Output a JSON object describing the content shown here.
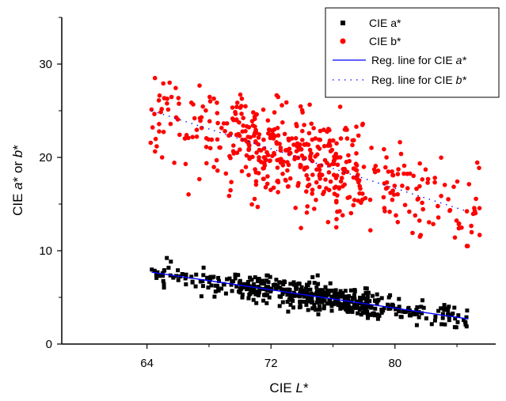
{
  "chart_data": {
    "type": "scatter",
    "xlabel": "CIE L*",
    "ylabel": "CIE a* or b*",
    "xlim": [
      58.5,
      86.5
    ],
    "ylim": [
      0,
      35
    ],
    "xticks": [
      "64",
      "72",
      "80"
    ],
    "yticks": [
      "0",
      "10",
      "20",
      "30"
    ],
    "grid": false,
    "legend_position": "top-right",
    "legend": [
      "CIE a*",
      "CIE b*",
      "Reg. line for CIE a*",
      "Reg. line for CIE b*"
    ],
    "series": [
      {
        "name": "CIE a*",
        "marker": "square",
        "color": "#000000",
        "points_description": "about 500 points clustered along the regression line",
        "x_range": [
          64.3,
          84.7
        ],
        "y_range": [
          1.8,
          9.8
        ]
      },
      {
        "name": "CIE b*",
        "marker": "circle",
        "color": "#ff0000",
        "points_description": "about 500 points widely scattered",
        "x_range": [
          64.2,
          85.5
        ],
        "y_range": [
          10.5,
          29
        ]
      },
      {
        "name": "Reg. line for CIE a*",
        "type": "line",
        "style": "solid",
        "color": "#0000ff",
        "x": [
          64.3,
          84.7
        ],
        "y": [
          7.7,
          2.7
        ]
      },
      {
        "name": "Reg. line for CIE b*",
        "type": "line",
        "style": "dotted",
        "color": "#0000ff",
        "x": [
          64.3,
          84.7
        ],
        "y": [
          25,
          14.2
        ]
      }
    ]
  }
}
